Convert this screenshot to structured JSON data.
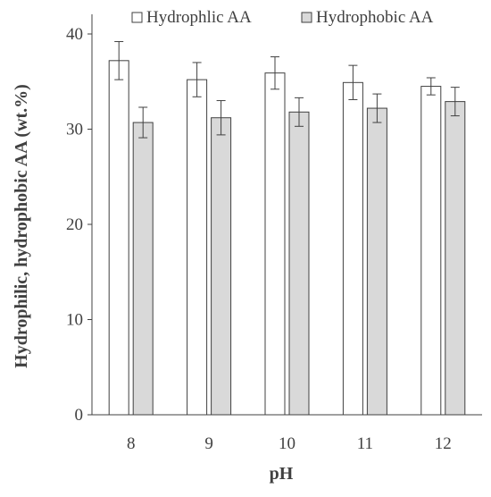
{
  "chart_data": {
    "type": "bar",
    "xlabel": "pH",
    "ylabel": "Hydrophilic, hydrophobic AA (wt.%)",
    "categories": [
      "8",
      "9",
      "10",
      "11",
      "12"
    ],
    "ylim": [
      0,
      40
    ],
    "yticks": [
      0,
      10,
      20,
      30,
      40
    ],
    "grid": false,
    "legend_position": "top",
    "series": [
      {
        "name": "Hydrophlic AA",
        "color": "#ffffff",
        "values": [
          37.2,
          35.2,
          35.9,
          34.9,
          34.5
        ],
        "errors": [
          2.0,
          1.8,
          1.7,
          1.8,
          0.9
        ]
      },
      {
        "name": "Hydrophobic AA",
        "color": "#d9d9d9",
        "values": [
          30.7,
          31.2,
          31.8,
          32.2,
          32.9
        ],
        "errors": [
          1.6,
          1.8,
          1.5,
          1.5,
          1.5
        ]
      }
    ]
  }
}
